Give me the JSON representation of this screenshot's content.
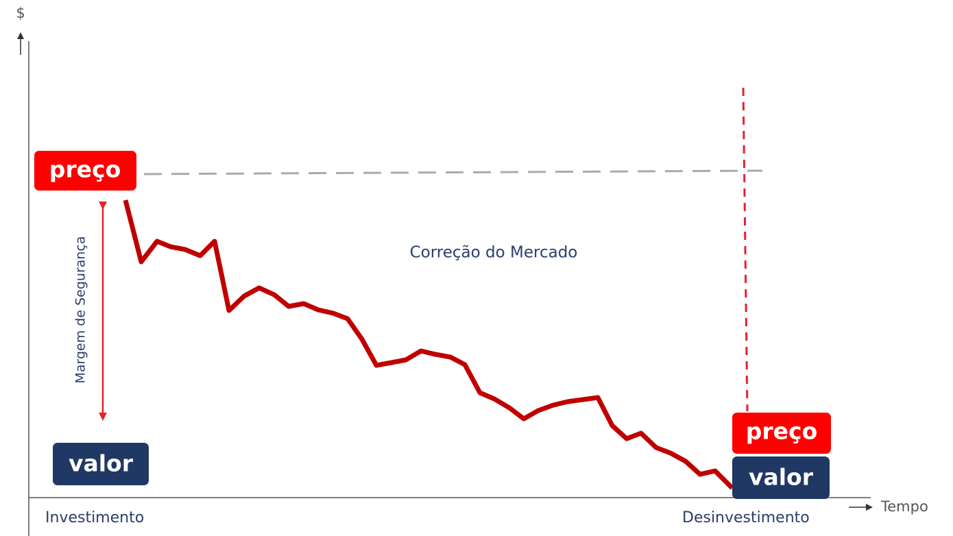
{
  "axes": {
    "y_label": "$",
    "x_label": "Tempo"
  },
  "start": {
    "price": "preço",
    "value": "valor"
  },
  "end": {
    "price": "preço",
    "value": "valor"
  },
  "margin_label": "Margem de Segurança",
  "annotation": "Correção do Mercado",
  "x_labels": [
    "Investimento",
    "Desinvestimento"
  ]
}
